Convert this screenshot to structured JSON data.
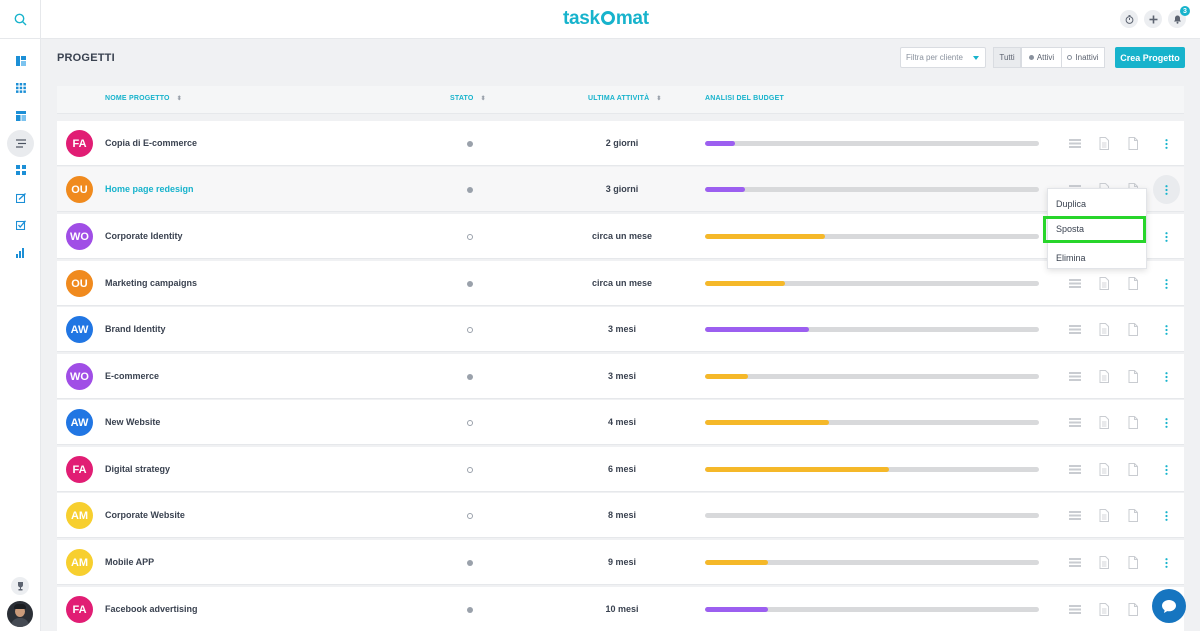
{
  "app": {
    "logo_text_a": "task",
    "logo_text_b": "mat",
    "notification_count": "3"
  },
  "page": {
    "title": "PROGETTI"
  },
  "toolbar": {
    "filter_placeholder": "Filtra per cliente",
    "seg_all": "Tutti",
    "seg_active": "Attivi",
    "seg_inactive": "Inattivi",
    "create_label": "Crea Progetto"
  },
  "table": {
    "headers": {
      "name": "NOME PROGETTO",
      "status": "STATO",
      "activity": "ULTIMA ATTIVITÀ",
      "budget": "ANALISI DEL BUDGET"
    },
    "rows": [
      {
        "initials": "FA",
        "color": "#e11d74",
        "name": "Copia di E-commerce",
        "status": "filled",
        "activity": "2 giorni",
        "budget": 0.09,
        "bar_color": "#9c5ff0"
      },
      {
        "initials": "OU",
        "color": "#f08a1e",
        "name": "Home page redesign",
        "status": "filled",
        "activity": "3 giorni",
        "budget": 0.12,
        "bar_color": "#9c5ff0"
      },
      {
        "initials": "WO",
        "color": "#a04ee6",
        "name": "Corporate Identity",
        "status": "empty",
        "activity": "circa un mese",
        "budget": 0.36,
        "bar_color": "#f5b829"
      },
      {
        "initials": "OU",
        "color": "#f08a1e",
        "name": "Marketing campaigns",
        "status": "filled",
        "activity": "circa un mese",
        "budget": 0.24,
        "bar_color": "#f5b829"
      },
      {
        "initials": "AW",
        "color": "#2176e3",
        "name": "Brand Identity",
        "status": "empty",
        "activity": "3 mesi",
        "budget": 0.31,
        "bar_color": "#9c5ff0"
      },
      {
        "initials": "WO",
        "color": "#a04ee6",
        "name": "E-commerce",
        "status": "filled",
        "activity": "3 mesi",
        "budget": 0.13,
        "bar_color": "#f5b829"
      },
      {
        "initials": "AW",
        "color": "#2176e3",
        "name": "New Website",
        "status": "empty",
        "activity": "4 mesi",
        "budget": 0.37,
        "bar_color": "#f5b829"
      },
      {
        "initials": "FA",
        "color": "#e11d74",
        "name": "Digital strategy",
        "status": "empty",
        "activity": "6 mesi",
        "budget": 0.55,
        "bar_color": "#f5b829"
      },
      {
        "initials": "AM",
        "color": "#f7cf2f",
        "name": "Corporate Website",
        "status": "empty",
        "activity": "8 mesi",
        "budget": 0,
        "bar_color": "#f5b829"
      },
      {
        "initials": "AM",
        "color": "#f7cf2f",
        "name": "Mobile APP",
        "status": "filled",
        "activity": "9 mesi",
        "budget": 0.19,
        "bar_color": "#f5b829"
      },
      {
        "initials": "FA",
        "color": "#e11d74",
        "name": "Facebook advertising",
        "status": "filled",
        "activity": "10 mesi",
        "budget": 0.19,
        "bar_color": "#9c5ff0"
      }
    ]
  },
  "context_menu": {
    "items": [
      "Duplica",
      "Sposta",
      "Elimina"
    ],
    "highlighted": "Sposta"
  },
  "colors": {
    "accent": "#17b3cc",
    "highlight_border": "#27d52a",
    "chat": "#1675c0"
  }
}
